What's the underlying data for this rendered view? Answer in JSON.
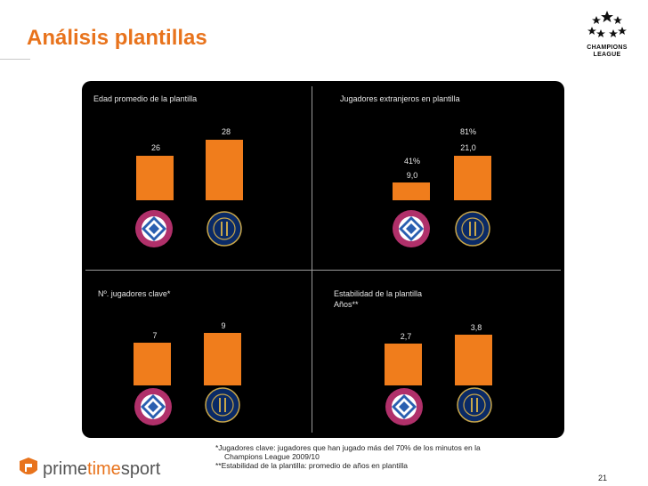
{
  "header": {
    "title": "Análisis plantillas"
  },
  "brand": {
    "accent": "#e8731c",
    "bar_color": "#f07d1c",
    "cl_logo_text": "CHAMPIONS LEAGUE",
    "company": "primetimesport"
  },
  "panels": {
    "edad": {
      "title": "Edad promedio de la plantilla",
      "bayern_label": "26",
      "inter_label": "28",
      "bayern_value": 26,
      "inter_value": 28
    },
    "extranjeros": {
      "title": "Jugadores extranjeros en plantilla",
      "bayern_pct": "41%",
      "bayern_label": "9,0",
      "inter_pct": "81%",
      "inter_label": "21,0",
      "bayern_value": 9.0,
      "inter_value": 21.0
    },
    "clave": {
      "title": "Nº. jugadores clave*",
      "bayern_label": "7",
      "inter_label": "9",
      "bayern_value": 7,
      "inter_value": 9
    },
    "estabilidad": {
      "title": "Estabilidad de la plantilla",
      "subtitle": "Años**",
      "bayern_label": "2,7",
      "inter_label": "3,8",
      "bayern_value": 2.7,
      "inter_value": 3.8
    }
  },
  "footnotes": {
    "line1": "*Jugadores clave: jugadores que han jugado más del 70% de los minutos en la",
    "line2": "Champions League 2009/10",
    "line3": "**Estabilidad de la plantilla: promedio de años en plantilla"
  },
  "page_number": "21",
  "chart_data": [
    {
      "type": "bar",
      "title": "Edad promedio de la plantilla",
      "categories": [
        "FC Bayern München",
        "Inter"
      ],
      "values": [
        26,
        28
      ]
    },
    {
      "type": "bar",
      "title": "Jugadores extranjeros en plantilla",
      "categories": [
        "FC Bayern München",
        "Inter"
      ],
      "values": [
        9.0,
        21.0
      ],
      "percent": [
        "41%",
        "81%"
      ]
    },
    {
      "type": "bar",
      "title": "Nº. jugadores clave*",
      "categories": [
        "FC Bayern München",
        "Inter"
      ],
      "values": [
        7,
        9
      ]
    },
    {
      "type": "bar",
      "title": "Estabilidad de la plantilla",
      "ylabel": "Años**",
      "categories": [
        "FC Bayern München",
        "Inter"
      ],
      "values": [
        2.7,
        3.8
      ]
    }
  ]
}
